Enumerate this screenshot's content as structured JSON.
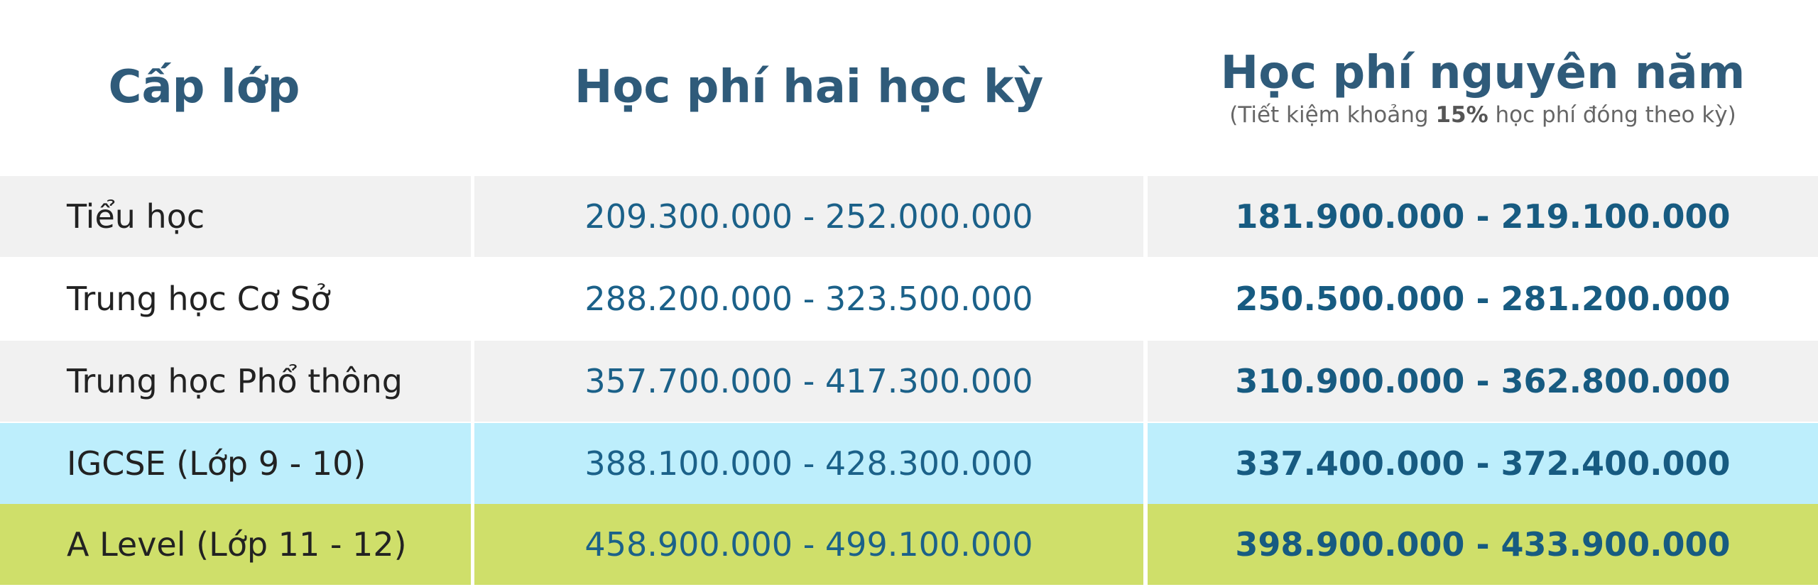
{
  "header": {
    "columns": [
      "Cấp lớp",
      "Học phí hai học kỳ",
      "Học phí nguyên năm"
    ],
    "note": [
      "(Tiết kiệm khoảng ",
      "15%",
      " học phí đóng theo kỳ)"
    ]
  },
  "table": {
    "rows": [
      [
        "Tiểu học",
        "209.300.000 - 252.000.000",
        "181.900.000 - 219.100.000"
      ],
      [
        "Trung học Cơ Sở",
        "288.200.000 - 323.500.000",
        "250.500.000 - 281.200.000"
      ],
      [
        "Trung học Phổ thông",
        "357.700.000 - 417.300.000",
        "310.900.000 - 362.800.000"
      ],
      [
        "IGCSE (Lớp 9 - 10)",
        "388.100.000 - 428.300.000",
        "337.400.000 - 372.400.000"
      ],
      [
        "A Level (Lớp 11 - 12)",
        "458.900.000 - 499.100.000",
        "398.900.000 - 433.900.000"
      ]
    ]
  }
}
